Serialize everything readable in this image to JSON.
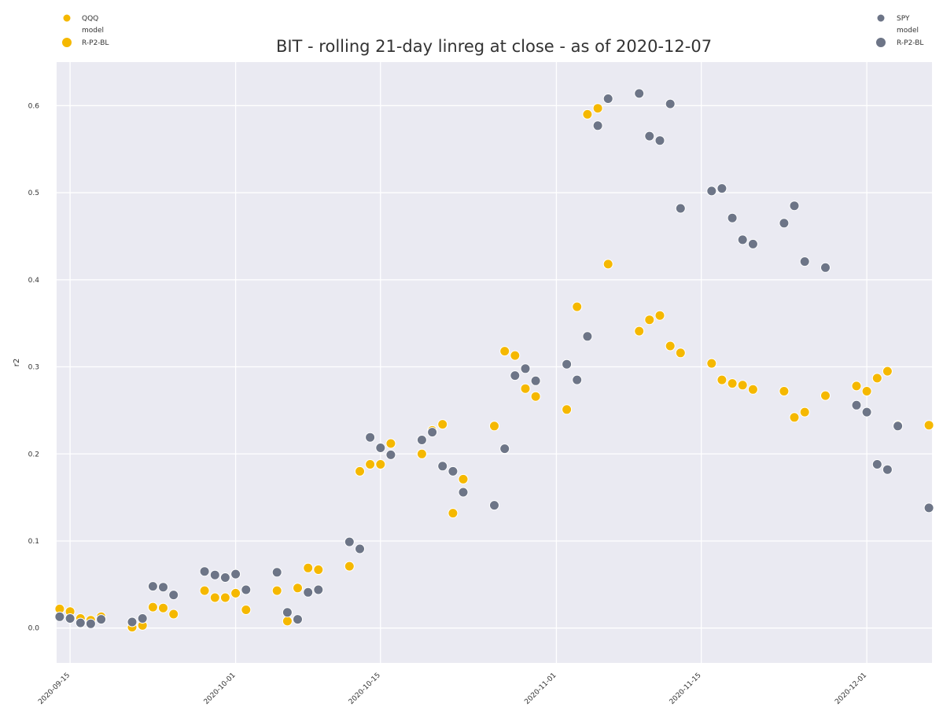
{
  "chart_data": {
    "type": "scatter",
    "title": "BIT - rolling 21-day linreg at close - as of 2020-12-07",
    "xlabel": "",
    "ylabel": "r2",
    "xlim": [
      "2020-09-14",
      "2020-12-07"
    ],
    "ylim": [
      -0.04,
      0.65
    ],
    "grid": true,
    "x_ticks": [
      "2020-09-15",
      "2020-10-01",
      "2020-10-15",
      "2020-11-01",
      "2020-11-15",
      "2020-12-01"
    ],
    "y_ticks": [
      "0.0",
      "0.1",
      "0.2",
      "0.3",
      "0.4",
      "0.5",
      "0.6"
    ],
    "series": [
      {
        "name": "QQQ",
        "color": "#f5b800",
        "legend": {
          "position": "top-left",
          "entries": [
            "QQQ",
            "model",
            "R-P2-BL"
          ]
        },
        "x": [
          "2020-09-14",
          "2020-09-15",
          "2020-09-16",
          "2020-09-17",
          "2020-09-18",
          "2020-09-21",
          "2020-09-22",
          "2020-09-23",
          "2020-09-24",
          "2020-09-25",
          "2020-09-28",
          "2020-09-29",
          "2020-09-30",
          "2020-10-01",
          "2020-10-02",
          "2020-10-05",
          "2020-10-06",
          "2020-10-07",
          "2020-10-08",
          "2020-10-09",
          "2020-10-12",
          "2020-10-13",
          "2020-10-14",
          "2020-10-15",
          "2020-10-16",
          "2020-10-19",
          "2020-10-20",
          "2020-10-21",
          "2020-10-22",
          "2020-10-23",
          "2020-10-26",
          "2020-10-27",
          "2020-10-28",
          "2020-10-29",
          "2020-10-30",
          "2020-11-02",
          "2020-11-03",
          "2020-11-04",
          "2020-11-05",
          "2020-11-06",
          "2020-11-09",
          "2020-11-10",
          "2020-11-11",
          "2020-11-12",
          "2020-11-13",
          "2020-11-16",
          "2020-11-17",
          "2020-11-18",
          "2020-11-19",
          "2020-11-20",
          "2020-11-23",
          "2020-11-24",
          "2020-11-25",
          "2020-11-27",
          "2020-11-30",
          "2020-12-01",
          "2020-12-02",
          "2020-12-03",
          "2020-12-04",
          "2020-12-07"
        ],
        "y": [
          0.022,
          0.019,
          0.011,
          0.009,
          0.013,
          0.001,
          0.003,
          0.024,
          0.023,
          0.016,
          0.043,
          0.035,
          0.035,
          0.04,
          0.021,
          0.043,
          0.008,
          0.046,
          0.069,
          0.067,
          0.071,
          0.18,
          0.188,
          0.188,
          0.212,
          0.2,
          0.227,
          0.234,
          0.132,
          0.171,
          0.232,
          0.318,
          0.313,
          0.275,
          0.266,
          0.251,
          0.369,
          0.59,
          0.597,
          0.418,
          0.341,
          0.354,
          0.359,
          0.324,
          0.316,
          0.304,
          0.285,
          0.281,
          0.279,
          0.274,
          0.272,
          0.242,
          0.248,
          0.267,
          0.278,
          0.272,
          0.287,
          0.295,
          0.233,
          0.233
        ]
      },
      {
        "name": "SPY",
        "color": "#6d7587",
        "legend": {
          "position": "top-right",
          "entries": [
            "SPY",
            "model",
            "R-P2-BL"
          ]
        },
        "x": [
          "2020-09-14",
          "2020-09-15",
          "2020-09-16",
          "2020-09-17",
          "2020-09-18",
          "2020-09-21",
          "2020-09-22",
          "2020-09-23",
          "2020-09-24",
          "2020-09-25",
          "2020-09-28",
          "2020-09-29",
          "2020-09-30",
          "2020-10-01",
          "2020-10-02",
          "2020-10-05",
          "2020-10-06",
          "2020-10-07",
          "2020-10-08",
          "2020-10-09",
          "2020-10-12",
          "2020-10-13",
          "2020-10-14",
          "2020-10-15",
          "2020-10-16",
          "2020-10-19",
          "2020-10-20",
          "2020-10-21",
          "2020-10-22",
          "2020-10-23",
          "2020-10-26",
          "2020-10-27",
          "2020-10-28",
          "2020-10-29",
          "2020-10-30",
          "2020-11-02",
          "2020-11-03",
          "2020-11-04",
          "2020-11-05",
          "2020-11-06",
          "2020-11-09",
          "2020-11-10",
          "2020-11-11",
          "2020-11-12",
          "2020-11-13",
          "2020-11-16",
          "2020-11-17",
          "2020-11-18",
          "2020-11-19",
          "2020-11-20",
          "2020-11-23",
          "2020-11-24",
          "2020-11-25",
          "2020-11-27",
          "2020-11-30",
          "2020-12-01",
          "2020-12-02",
          "2020-12-03",
          "2020-12-04",
          "2020-12-07"
        ],
        "y": [
          0.013,
          0.011,
          0.006,
          0.005,
          0.01,
          0.007,
          0.011,
          0.048,
          0.047,
          0.038,
          0.065,
          0.061,
          0.058,
          0.062,
          0.044,
          0.064,
          0.018,
          0.01,
          0.041,
          0.044,
          0.099,
          0.091,
          0.219,
          0.207,
          0.199,
          0.216,
          0.225,
          0.186,
          0.18,
          0.156,
          0.141,
          0.206,
          0.29,
          0.298,
          0.284,
          0.303,
          0.285,
          0.335,
          0.577,
          0.608,
          0.614,
          0.565,
          0.56,
          0.602,
          0.482,
          0.502,
          0.505,
          0.471,
          0.446,
          0.441,
          0.465,
          0.485,
          0.421,
          0.414,
          0.256,
          0.248,
          0.188,
          0.182,
          0.232,
          0.138
        ]
      }
    ]
  }
}
